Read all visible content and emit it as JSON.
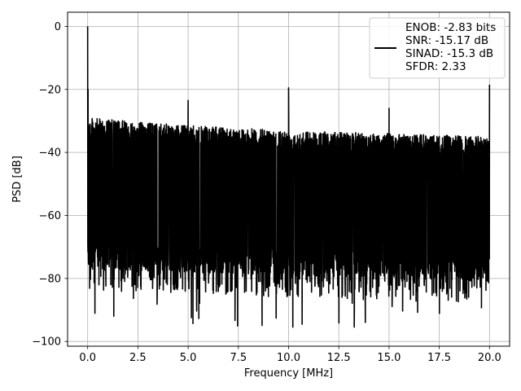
{
  "chart_data": {
    "type": "line",
    "title": "",
    "xlabel": "Frequency [MHz]",
    "ylabel": "PSD [dB]",
    "xlim": [
      -1.0,
      21.0
    ],
    "ylim": [
      -101.5,
      4.5
    ],
    "xticks": [
      0.0,
      2.5,
      5.0,
      7.5,
      10.0,
      12.5,
      15.0,
      17.5,
      20.0
    ],
    "xtick_labels": [
      "0.0",
      "2.5",
      "5.0",
      "7.5",
      "10.0",
      "12.5",
      "15.0",
      "17.5",
      "20.0"
    ],
    "yticks": [
      0,
      -20,
      -40,
      -60,
      -80,
      -100
    ],
    "ytick_labels": [
      "0",
      "−20",
      "−40",
      "−60",
      "−80",
      "−100"
    ],
    "grid": true,
    "legend_position": "upper-right",
    "series": [
      {
        "name": "ENOB: -2.83 bits\nSNR: -15.17 dB\nSINAD: -15.3 dB\nSFDR: 2.33",
        "color": "#000000",
        "noise": {
          "upper_envelope": [
            [
              0.0,
              -29
            ],
            [
              5.0,
              -31.5
            ],
            [
              10.0,
              -33
            ],
            [
              15.0,
              -34
            ],
            [
              20.0,
              -35
            ]
          ],
          "lower_envelope": [
            [
              0.0,
              -77
            ],
            [
              10.0,
              -79
            ],
            [
              20.0,
              -81
            ]
          ],
          "min": -96
        },
        "peaks": [
          {
            "x": 0.0,
            "y": 0
          },
          {
            "x": 0.02,
            "y": -20
          },
          {
            "x": 5.0,
            "y": -23.5
          },
          {
            "x": 10.0,
            "y": -19.5
          },
          {
            "x": 15.0,
            "y": -26
          },
          {
            "x": 20.0,
            "y": -18.5
          }
        ]
      }
    ],
    "legend_lines": [
      "ENOB: -2.83 bits",
      "SNR: -15.17 dB",
      "SINAD: -15.3 dB",
      "SFDR: 2.33"
    ]
  }
}
